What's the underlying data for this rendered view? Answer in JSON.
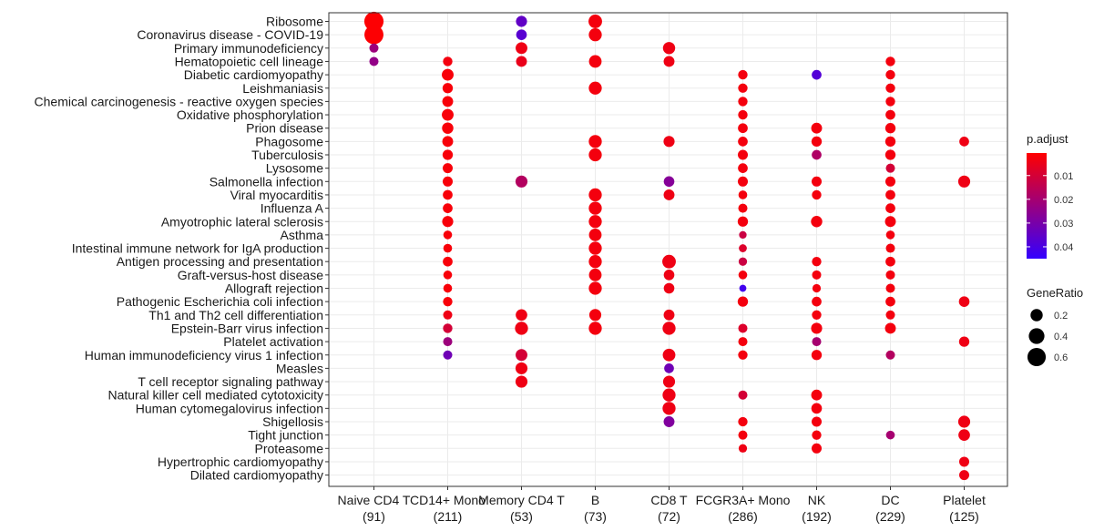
{
  "chart_data": {
    "type": "dotplot",
    "categories": [
      {
        "label": "Naive CD4 T",
        "count": "(91)"
      },
      {
        "label": "CD14+ Mono",
        "count": "(211)"
      },
      {
        "label": "Memory CD4 T",
        "count": "(53)"
      },
      {
        "label": "B",
        "count": "(73)"
      },
      {
        "label": "CD8 T",
        "count": "(72)"
      },
      {
        "label": "FCGR3A+ Mono",
        "count": "(286)"
      },
      {
        "label": "NK",
        "count": "(192)"
      },
      {
        "label": "DC",
        "count": "(229)"
      },
      {
        "label": "Platelet",
        "count": "(125)"
      }
    ],
    "pathways": [
      "Ribosome",
      "Coronavirus disease - COVID-19",
      "Primary immunodeficiency",
      "Hematopoietic cell lineage",
      "Diabetic cardiomyopathy",
      "Leishmaniasis",
      "Chemical carcinogenesis - reactive oxygen species",
      "Oxidative phosphorylation",
      "Prion disease",
      "Phagosome",
      "Tuberculosis",
      "Lysosome",
      "Salmonella infection",
      "Viral myocarditis",
      "Influenza A",
      "Amyotrophic lateral sclerosis",
      "Asthma",
      "Intestinal immune network for IgA production",
      "Antigen processing and presentation",
      "Graft-versus-host disease",
      "Allograft rejection",
      "Pathogenic Escherichia coli infection",
      "Th1 and Th2 cell differentiation",
      "Epstein-Barr virus infection",
      "Platelet activation",
      "Human immunodeficiency virus 1 infection",
      "Measles",
      "T cell receptor signaling pathway",
      "Natural killer cell mediated cytotoxicity",
      "Human cytomegalovirus infection",
      "Shigellosis",
      "Tight junction",
      "Proteasome",
      "Hypertrophic cardiomyopathy",
      "Dilated cardiomyopathy"
    ],
    "points": [
      {
        "pathway": 0,
        "cluster": 0,
        "gene_ratio": 0.68,
        "p_adjust": 0.001
      },
      {
        "pathway": 0,
        "cluster": 2,
        "gene_ratio": 0.15,
        "p_adjust": 0.035
      },
      {
        "pathway": 0,
        "cluster": 3,
        "gene_ratio": 0.27,
        "p_adjust": 0.003
      },
      {
        "pathway": 1,
        "cluster": 0,
        "gene_ratio": 0.66,
        "p_adjust": 0.001
      },
      {
        "pathway": 1,
        "cluster": 2,
        "gene_ratio": 0.13,
        "p_adjust": 0.037
      },
      {
        "pathway": 1,
        "cluster": 3,
        "gene_ratio": 0.24,
        "p_adjust": 0.003
      },
      {
        "pathway": 2,
        "cluster": 0,
        "gene_ratio": 0.08,
        "p_adjust": 0.022
      },
      {
        "pathway": 2,
        "cluster": 2,
        "gene_ratio": 0.18,
        "p_adjust": 0.004
      },
      {
        "pathway": 2,
        "cluster": 4,
        "gene_ratio": 0.2,
        "p_adjust": 0.004
      },
      {
        "pathway": 3,
        "cluster": 0,
        "gene_ratio": 0.08,
        "p_adjust": 0.024
      },
      {
        "pathway": 3,
        "cluster": 1,
        "gene_ratio": 0.09,
        "p_adjust": 0.003
      },
      {
        "pathway": 3,
        "cluster": 2,
        "gene_ratio": 0.14,
        "p_adjust": 0.005
      },
      {
        "pathway": 3,
        "cluster": 3,
        "gene_ratio": 0.22,
        "p_adjust": 0.003
      },
      {
        "pathway": 3,
        "cluster": 4,
        "gene_ratio": 0.14,
        "p_adjust": 0.004
      },
      {
        "pathway": 3,
        "cluster": 7,
        "gene_ratio": 0.09,
        "p_adjust": 0.003
      },
      {
        "pathway": 4,
        "cluster": 1,
        "gene_ratio": 0.18,
        "p_adjust": 0.002
      },
      {
        "pathway": 4,
        "cluster": 5,
        "gene_ratio": 0.09,
        "p_adjust": 0.003
      },
      {
        "pathway": 4,
        "cluster": 6,
        "gene_ratio": 0.1,
        "p_adjust": 0.038
      },
      {
        "pathway": 4,
        "cluster": 7,
        "gene_ratio": 0.09,
        "p_adjust": 0.003
      },
      {
        "pathway": 5,
        "cluster": 1,
        "gene_ratio": 0.12,
        "p_adjust": 0.002
      },
      {
        "pathway": 5,
        "cluster": 3,
        "gene_ratio": 0.24,
        "p_adjust": 0.003
      },
      {
        "pathway": 5,
        "cluster": 5,
        "gene_ratio": 0.09,
        "p_adjust": 0.003
      },
      {
        "pathway": 5,
        "cluster": 7,
        "gene_ratio": 0.09,
        "p_adjust": 0.003
      },
      {
        "pathway": 6,
        "cluster": 1,
        "gene_ratio": 0.14,
        "p_adjust": 0.002
      },
      {
        "pathway": 6,
        "cluster": 5,
        "gene_ratio": 0.09,
        "p_adjust": 0.003
      },
      {
        "pathway": 6,
        "cluster": 7,
        "gene_ratio": 0.09,
        "p_adjust": 0.003
      },
      {
        "pathway": 7,
        "cluster": 1,
        "gene_ratio": 0.18,
        "p_adjust": 0.002
      },
      {
        "pathway": 7,
        "cluster": 5,
        "gene_ratio": 0.09,
        "p_adjust": 0.003
      },
      {
        "pathway": 7,
        "cluster": 7,
        "gene_ratio": 0.1,
        "p_adjust": 0.003
      },
      {
        "pathway": 8,
        "cluster": 1,
        "gene_ratio": 0.16,
        "p_adjust": 0.002
      },
      {
        "pathway": 8,
        "cluster": 5,
        "gene_ratio": 0.1,
        "p_adjust": 0.003
      },
      {
        "pathway": 8,
        "cluster": 6,
        "gene_ratio": 0.14,
        "p_adjust": 0.003
      },
      {
        "pathway": 8,
        "cluster": 7,
        "gene_ratio": 0.12,
        "p_adjust": 0.003
      },
      {
        "pathway": 9,
        "cluster": 1,
        "gene_ratio": 0.14,
        "p_adjust": 0.002
      },
      {
        "pathway": 9,
        "cluster": 3,
        "gene_ratio": 0.24,
        "p_adjust": 0.003
      },
      {
        "pathway": 9,
        "cluster": 4,
        "gene_ratio": 0.15,
        "p_adjust": 0.004
      },
      {
        "pathway": 9,
        "cluster": 5,
        "gene_ratio": 0.1,
        "p_adjust": 0.003
      },
      {
        "pathway": 9,
        "cluster": 6,
        "gene_ratio": 0.12,
        "p_adjust": 0.003
      },
      {
        "pathway": 9,
        "cluster": 7,
        "gene_ratio": 0.12,
        "p_adjust": 0.003
      },
      {
        "pathway": 9,
        "cluster": 8,
        "gene_ratio": 0.1,
        "p_adjust": 0.004
      },
      {
        "pathway": 10,
        "cluster": 1,
        "gene_ratio": 0.12,
        "p_adjust": 0.002
      },
      {
        "pathway": 10,
        "cluster": 3,
        "gene_ratio": 0.24,
        "p_adjust": 0.003
      },
      {
        "pathway": 10,
        "cluster": 5,
        "gene_ratio": 0.11,
        "p_adjust": 0.003
      },
      {
        "pathway": 10,
        "cluster": 6,
        "gene_ratio": 0.1,
        "p_adjust": 0.018
      },
      {
        "pathway": 10,
        "cluster": 7,
        "gene_ratio": 0.12,
        "p_adjust": 0.003
      },
      {
        "pathway": 11,
        "cluster": 1,
        "gene_ratio": 0.11,
        "p_adjust": 0.002
      },
      {
        "pathway": 11,
        "cluster": 5,
        "gene_ratio": 0.1,
        "p_adjust": 0.003
      },
      {
        "pathway": 11,
        "cluster": 7,
        "gene_ratio": 0.08,
        "p_adjust": 0.01
      },
      {
        "pathway": 12,
        "cluster": 1,
        "gene_ratio": 0.11,
        "p_adjust": 0.002
      },
      {
        "pathway": 12,
        "cluster": 2,
        "gene_ratio": 0.19,
        "p_adjust": 0.017
      },
      {
        "pathway": 12,
        "cluster": 4,
        "gene_ratio": 0.13,
        "p_adjust": 0.027
      },
      {
        "pathway": 12,
        "cluster": 5,
        "gene_ratio": 0.11,
        "p_adjust": 0.003
      },
      {
        "pathway": 12,
        "cluster": 6,
        "gene_ratio": 0.11,
        "p_adjust": 0.003
      },
      {
        "pathway": 12,
        "cluster": 7,
        "gene_ratio": 0.11,
        "p_adjust": 0.003
      },
      {
        "pathway": 12,
        "cluster": 8,
        "gene_ratio": 0.19,
        "p_adjust": 0.004
      },
      {
        "pathway": 13,
        "cluster": 1,
        "gene_ratio": 0.1,
        "p_adjust": 0.002
      },
      {
        "pathway": 13,
        "cluster": 3,
        "gene_ratio": 0.24,
        "p_adjust": 0.003
      },
      {
        "pathway": 13,
        "cluster": 4,
        "gene_ratio": 0.14,
        "p_adjust": 0.004
      },
      {
        "pathway": 13,
        "cluster": 5,
        "gene_ratio": 0.07,
        "p_adjust": 0.003
      },
      {
        "pathway": 13,
        "cluster": 6,
        "gene_ratio": 0.09,
        "p_adjust": 0.003
      },
      {
        "pathway": 13,
        "cluster": 7,
        "gene_ratio": 0.1,
        "p_adjust": 0.003
      },
      {
        "pathway": 14,
        "cluster": 1,
        "gene_ratio": 0.1,
        "p_adjust": 0.002
      },
      {
        "pathway": 14,
        "cluster": 3,
        "gene_ratio": 0.24,
        "p_adjust": 0.003
      },
      {
        "pathway": 14,
        "cluster": 5,
        "gene_ratio": 0.08,
        "p_adjust": 0.003
      },
      {
        "pathway": 14,
        "cluster": 7,
        "gene_ratio": 0.1,
        "p_adjust": 0.003
      },
      {
        "pathway": 15,
        "cluster": 1,
        "gene_ratio": 0.15,
        "p_adjust": 0.002
      },
      {
        "pathway": 15,
        "cluster": 3,
        "gene_ratio": 0.24,
        "p_adjust": 0.003
      },
      {
        "pathway": 15,
        "cluster": 5,
        "gene_ratio": 0.12,
        "p_adjust": 0.003
      },
      {
        "pathway": 15,
        "cluster": 6,
        "gene_ratio": 0.16,
        "p_adjust": 0.003
      },
      {
        "pathway": 15,
        "cluster": 7,
        "gene_ratio": 0.14,
        "p_adjust": 0.003
      },
      {
        "pathway": 16,
        "cluster": 1,
        "gene_ratio": 0.07,
        "p_adjust": 0.002
      },
      {
        "pathway": 16,
        "cluster": 3,
        "gene_ratio": 0.22,
        "p_adjust": 0.003
      },
      {
        "pathway": 16,
        "cluster": 5,
        "gene_ratio": 0.04,
        "p_adjust": 0.012
      },
      {
        "pathway": 16,
        "cluster": 7,
        "gene_ratio": 0.07,
        "p_adjust": 0.003
      },
      {
        "pathway": 17,
        "cluster": 1,
        "gene_ratio": 0.07,
        "p_adjust": 0.002
      },
      {
        "pathway": 17,
        "cluster": 3,
        "gene_ratio": 0.24,
        "p_adjust": 0.003
      },
      {
        "pathway": 17,
        "cluster": 5,
        "gene_ratio": 0.05,
        "p_adjust": 0.008
      },
      {
        "pathway": 17,
        "cluster": 7,
        "gene_ratio": 0.08,
        "p_adjust": 0.003
      },
      {
        "pathway": 18,
        "cluster": 1,
        "gene_ratio": 0.1,
        "p_adjust": 0.002
      },
      {
        "pathway": 18,
        "cluster": 3,
        "gene_ratio": 0.24,
        "p_adjust": 0.003
      },
      {
        "pathway": 18,
        "cluster": 4,
        "gene_ratio": 0.27,
        "p_adjust": 0.004
      },
      {
        "pathway": 18,
        "cluster": 5,
        "gene_ratio": 0.06,
        "p_adjust": 0.012
      },
      {
        "pathway": 18,
        "cluster": 6,
        "gene_ratio": 0.09,
        "p_adjust": 0.003
      },
      {
        "pathway": 18,
        "cluster": 7,
        "gene_ratio": 0.1,
        "p_adjust": 0.003
      },
      {
        "pathway": 19,
        "cluster": 1,
        "gene_ratio": 0.07,
        "p_adjust": 0.002
      },
      {
        "pathway": 19,
        "cluster": 3,
        "gene_ratio": 0.22,
        "p_adjust": 0.003
      },
      {
        "pathway": 19,
        "cluster": 4,
        "gene_ratio": 0.13,
        "p_adjust": 0.004
      },
      {
        "pathway": 19,
        "cluster": 5,
        "gene_ratio": 0.07,
        "p_adjust": 0.003
      },
      {
        "pathway": 19,
        "cluster": 6,
        "gene_ratio": 0.08,
        "p_adjust": 0.003
      },
      {
        "pathway": 19,
        "cluster": 7,
        "gene_ratio": 0.08,
        "p_adjust": 0.003
      },
      {
        "pathway": 20,
        "cluster": 1,
        "gene_ratio": 0.07,
        "p_adjust": 0.002
      },
      {
        "pathway": 20,
        "cluster": 3,
        "gene_ratio": 0.24,
        "p_adjust": 0.003
      },
      {
        "pathway": 20,
        "cluster": 4,
        "gene_ratio": 0.13,
        "p_adjust": 0.004
      },
      {
        "pathway": 20,
        "cluster": 5,
        "gene_ratio": 0.03,
        "p_adjust": 0.042
      },
      {
        "pathway": 20,
        "cluster": 6,
        "gene_ratio": 0.06,
        "p_adjust": 0.003
      },
      {
        "pathway": 20,
        "cluster": 7,
        "gene_ratio": 0.08,
        "p_adjust": 0.003
      },
      {
        "pathway": 21,
        "cluster": 1,
        "gene_ratio": 0.09,
        "p_adjust": 0.002
      },
      {
        "pathway": 21,
        "cluster": 5,
        "gene_ratio": 0.12,
        "p_adjust": 0.003
      },
      {
        "pathway": 21,
        "cluster": 6,
        "gene_ratio": 0.1,
        "p_adjust": 0.003
      },
      {
        "pathway": 21,
        "cluster": 7,
        "gene_ratio": 0.1,
        "p_adjust": 0.003
      },
      {
        "pathway": 21,
        "cluster": 8,
        "gene_ratio": 0.13,
        "p_adjust": 0.004
      },
      {
        "pathway": 22,
        "cluster": 1,
        "gene_ratio": 0.08,
        "p_adjust": 0.004
      },
      {
        "pathway": 22,
        "cluster": 2,
        "gene_ratio": 0.17,
        "p_adjust": 0.004
      },
      {
        "pathway": 22,
        "cluster": 3,
        "gene_ratio": 0.19,
        "p_adjust": 0.003
      },
      {
        "pathway": 22,
        "cluster": 4,
        "gene_ratio": 0.14,
        "p_adjust": 0.004
      },
      {
        "pathway": 22,
        "cluster": 6,
        "gene_ratio": 0.09,
        "p_adjust": 0.003
      },
      {
        "pathway": 22,
        "cluster": 7,
        "gene_ratio": 0.08,
        "p_adjust": 0.003
      },
      {
        "pathway": 23,
        "cluster": 1,
        "gene_ratio": 0.09,
        "p_adjust": 0.01
      },
      {
        "pathway": 23,
        "cluster": 2,
        "gene_ratio": 0.24,
        "p_adjust": 0.004
      },
      {
        "pathway": 23,
        "cluster": 3,
        "gene_ratio": 0.24,
        "p_adjust": 0.003
      },
      {
        "pathway": 23,
        "cluster": 4,
        "gene_ratio": 0.24,
        "p_adjust": 0.004
      },
      {
        "pathway": 23,
        "cluster": 5,
        "gene_ratio": 0.08,
        "p_adjust": 0.008
      },
      {
        "pathway": 23,
        "cluster": 6,
        "gene_ratio": 0.15,
        "p_adjust": 0.003
      },
      {
        "pathway": 23,
        "cluster": 7,
        "gene_ratio": 0.14,
        "p_adjust": 0.003
      },
      {
        "pathway": 24,
        "cluster": 1,
        "gene_ratio": 0.08,
        "p_adjust": 0.022
      },
      {
        "pathway": 24,
        "cluster": 5,
        "gene_ratio": 0.08,
        "p_adjust": 0.003
      },
      {
        "pathway": 24,
        "cluster": 6,
        "gene_ratio": 0.08,
        "p_adjust": 0.02
      },
      {
        "pathway": 24,
        "cluster": 8,
        "gene_ratio": 0.12,
        "p_adjust": 0.004
      },
      {
        "pathway": 25,
        "cluster": 1,
        "gene_ratio": 0.08,
        "p_adjust": 0.032
      },
      {
        "pathway": 25,
        "cluster": 2,
        "gene_ratio": 0.18,
        "p_adjust": 0.01
      },
      {
        "pathway": 25,
        "cluster": 4,
        "gene_ratio": 0.22,
        "p_adjust": 0.004
      },
      {
        "pathway": 25,
        "cluster": 5,
        "gene_ratio": 0.09,
        "p_adjust": 0.003
      },
      {
        "pathway": 25,
        "cluster": 6,
        "gene_ratio": 0.12,
        "p_adjust": 0.003
      },
      {
        "pathway": 25,
        "cluster": 7,
        "gene_ratio": 0.08,
        "p_adjust": 0.017
      },
      {
        "pathway": 26,
        "cluster": 2,
        "gene_ratio": 0.19,
        "p_adjust": 0.004
      },
      {
        "pathway": 26,
        "cluster": 4,
        "gene_ratio": 0.1,
        "p_adjust": 0.032
      },
      {
        "pathway": 27,
        "cluster": 2,
        "gene_ratio": 0.19,
        "p_adjust": 0.004
      },
      {
        "pathway": 27,
        "cluster": 4,
        "gene_ratio": 0.19,
        "p_adjust": 0.004
      },
      {
        "pathway": 28,
        "cluster": 4,
        "gene_ratio": 0.24,
        "p_adjust": 0.004
      },
      {
        "pathway": 28,
        "cluster": 5,
        "gene_ratio": 0.08,
        "p_adjust": 0.01
      },
      {
        "pathway": 28,
        "cluster": 6,
        "gene_ratio": 0.14,
        "p_adjust": 0.003
      },
      {
        "pathway": 29,
        "cluster": 4,
        "gene_ratio": 0.24,
        "p_adjust": 0.004
      },
      {
        "pathway": 29,
        "cluster": 6,
        "gene_ratio": 0.13,
        "p_adjust": 0.003
      },
      {
        "pathway": 30,
        "cluster": 4,
        "gene_ratio": 0.14,
        "p_adjust": 0.028
      },
      {
        "pathway": 30,
        "cluster": 5,
        "gene_ratio": 0.09,
        "p_adjust": 0.003
      },
      {
        "pathway": 30,
        "cluster": 6,
        "gene_ratio": 0.11,
        "p_adjust": 0.003
      },
      {
        "pathway": 30,
        "cluster": 8,
        "gene_ratio": 0.19,
        "p_adjust": 0.004
      },
      {
        "pathway": 31,
        "cluster": 5,
        "gene_ratio": 0.08,
        "p_adjust": 0.003
      },
      {
        "pathway": 31,
        "cluster": 6,
        "gene_ratio": 0.09,
        "p_adjust": 0.003
      },
      {
        "pathway": 31,
        "cluster": 7,
        "gene_ratio": 0.07,
        "p_adjust": 0.02
      },
      {
        "pathway": 31,
        "cluster": 8,
        "gene_ratio": 0.17,
        "p_adjust": 0.004
      },
      {
        "pathway": 32,
        "cluster": 5,
        "gene_ratio": 0.06,
        "p_adjust": 0.004
      },
      {
        "pathway": 32,
        "cluster": 6,
        "gene_ratio": 0.11,
        "p_adjust": 0.003
      },
      {
        "pathway": 33,
        "cluster": 8,
        "gene_ratio": 0.11,
        "p_adjust": 0.004
      },
      {
        "pathway": 34,
        "cluster": 8,
        "gene_ratio": 0.11,
        "p_adjust": 0.004
      }
    ],
    "color_scale": {
      "title": "p.adjust",
      "low_color": "#ff0000",
      "high_color": "#3300ff",
      "range": [
        0.0005,
        0.045
      ],
      "ticks": [
        "0.01",
        "0.02",
        "0.03",
        "0.04"
      ],
      "tick_values": [
        0.01,
        0.02,
        0.03,
        0.04
      ]
    },
    "size_scale": {
      "title": "GeneRatio",
      "ticks": [
        "0.2",
        "0.4",
        "0.6"
      ],
      "tick_values": [
        0.2,
        0.4,
        0.6
      ],
      "range": [
        0.03,
        0.7
      ]
    },
    "grid": true,
    "legend_position": "right"
  }
}
